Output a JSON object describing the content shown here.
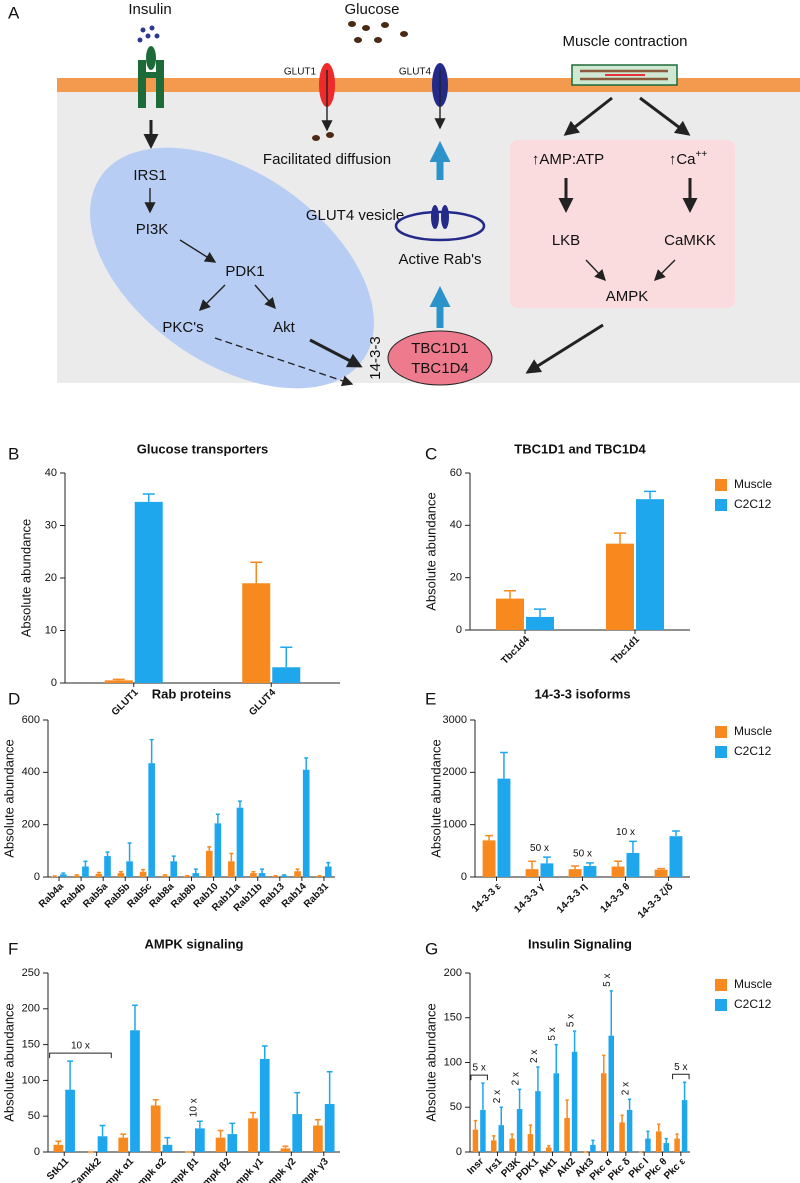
{
  "diagram": {
    "panel": "A",
    "insulin": "Insulin",
    "glucose": "Glucose",
    "muscle_contraction": "Muscle contraction",
    "glut1": "GLUT1",
    "glut4": "GLUT4",
    "facilitated_diffusion": "Facilitated diffusion",
    "glut4_vesicle": "GLUT4 vesicle",
    "active_rabs": "Active Rab's",
    "irs1": "IRS1",
    "pi3k": "PI3K",
    "pdk1": "PDK1",
    "pkcs": "PKC's",
    "akt": "Akt",
    "protein_1433": "14-3-3",
    "tbc1d1": "TBC1D1",
    "tbc1d4": "TBC1D4",
    "amp_atp": "↑AMP:ATP",
    "ca": {
      "base": "↑Ca",
      "sup": "++"
    },
    "lkb": "LKB",
    "camkk": "CaMKK",
    "ampk": "AMPK"
  },
  "chart_data": [
    {
      "type": "bar",
      "panel": "B",
      "title": "Glucose transporters",
      "y_label": "Absolute abundance",
      "categories": [
        "GLUT1",
        "GLUT4"
      ],
      "series": [
        {
          "color": "#f7891f",
          "values": [
            0.5,
            19
          ],
          "errors": [
            0.2,
            4
          ]
        },
        {
          "color": "#1fa7ee",
          "values": [
            34.5,
            3
          ],
          "errors": [
            1.5,
            3.8
          ]
        }
      ],
      "ylim": [
        0,
        40
      ],
      "yticks": [
        0,
        10,
        20,
        30,
        40
      ],
      "legend": "none",
      "annotations": []
    },
    {
      "type": "bar",
      "panel": "C",
      "title": "TBC1D1 and TBC1D4",
      "y_label": "Absolute abundance",
      "categories": [
        "Tbc1d4",
        "Tbc1d1"
      ],
      "series": [
        {
          "name": "Muscle",
          "color": "#f7891f",
          "values": [
            12,
            33
          ],
          "errors": [
            3,
            4
          ]
        },
        {
          "name": "C2C12",
          "color": "#1fa7ee",
          "values": [
            5,
            50
          ],
          "errors": [
            3,
            3
          ]
        }
      ],
      "ylim": [
        0,
        60
      ],
      "yticks": [
        0,
        20,
        40,
        60
      ],
      "legend": "right",
      "annotations": []
    },
    {
      "type": "bar",
      "panel": "D",
      "title": "Rab proteins",
      "y_label": "Absolute abundance",
      "categories": [
        "Rab4a",
        "Rab4b",
        "Rab5a",
        "Rab5b",
        "Rab5c",
        "Rab8a",
        "Rab8b",
        "Rab10",
        "Rab11a",
        "Rab11b",
        "Rab13",
        "Rab14",
        "Rab31"
      ],
      "series": [
        {
          "color": "#f7891f",
          "values": [
            2,
            5,
            12,
            15,
            20,
            5,
            3,
            100,
            60,
            15,
            3,
            22,
            3
          ],
          "errors": [
            2,
            3,
            5,
            5,
            8,
            3,
            2,
            15,
            30,
            5,
            2,
            8,
            2
          ]
        },
        {
          "color": "#1fa7ee",
          "values": [
            10,
            40,
            80,
            60,
            435,
            60,
            15,
            205,
            265,
            15,
            5,
            410,
            40
          ],
          "errors": [
            5,
            20,
            15,
            70,
            90,
            20,
            15,
            35,
            25,
            15,
            3,
            45,
            15
          ]
        }
      ],
      "ylim": [
        0,
        600
      ],
      "yticks": [
        0,
        200,
        400,
        600
      ],
      "legend": "none",
      "annotations": []
    },
    {
      "type": "bar",
      "panel": "E",
      "title": "14-3-3 isoforms",
      "y_label": "Absolute abundance",
      "categories": [
        "14-3-3 ε",
        "14-3-3 γ",
        "14-3-3 η",
        "14-3-3 θ",
        "14-3-3 ζ/δ"
      ],
      "series": [
        {
          "name": "Muscle",
          "color": "#f7891f",
          "values": [
            700,
            150,
            150,
            200,
            140
          ],
          "errors": [
            90,
            150,
            60,
            100,
            20
          ]
        },
        {
          "name": "C2C12",
          "color": "#1fa7ee",
          "values": [
            1880,
            260,
            210,
            460,
            780
          ],
          "errors": [
            500,
            120,
            60,
            220,
            100
          ]
        }
      ],
      "ylim": [
        0,
        3000
      ],
      "yticks": [
        0,
        1000,
        2000,
        3000
      ],
      "legend": "right",
      "annotations": [
        {
          "text": "50 x",
          "categories": [
            1
          ],
          "bracket": false,
          "rotated": false
        },
        {
          "text": "50 x",
          "categories": [
            2
          ],
          "bracket": false,
          "rotated": false
        },
        {
          "text": "10 x",
          "categories": [
            3
          ],
          "bracket": false,
          "rotated": false
        }
      ]
    },
    {
      "type": "bar",
      "panel": "F",
      "title": "AMPK signaling",
      "y_label": "Absolute abundance",
      "categories": [
        "Stk11",
        "Camkk2",
        "Ampk α1",
        "Ampk α2",
        "Ampk β1",
        "Ampk β2",
        "Ampk γ1",
        "Ampk γ2",
        "Ampk γ3"
      ],
      "series": [
        {
          "color": "#f7891f",
          "values": [
            10,
            0,
            20,
            65,
            0,
            20,
            47,
            5,
            37
          ],
          "errors": [
            5,
            0,
            5,
            8,
            0,
            10,
            8,
            3,
            8
          ]
        },
        {
          "color": "#1fa7ee",
          "values": [
            87,
            22,
            170,
            10,
            33,
            25,
            130,
            53,
            67
          ],
          "errors": [
            40,
            15,
            35,
            10,
            10,
            15,
            18,
            30,
            45
          ]
        }
      ],
      "ylim": [
        0,
        250
      ],
      "yticks": [
        0,
        50,
        100,
        150,
        200,
        250
      ],
      "legend": "none",
      "annotations": [
        {
          "text": "10 x",
          "categories": [
            0,
            1
          ],
          "bracket": true,
          "rotated": false
        },
        {
          "text": "10 x",
          "categories": [
            4
          ],
          "bracket": false,
          "rotated": true
        }
      ]
    },
    {
      "type": "bar",
      "panel": "G",
      "title": "Insulin Signaling",
      "y_label": "Absolute abundance",
      "categories": [
        "Insr",
        "Irs1",
        "PI3K",
        "PDK1",
        "Akt1",
        "Akt2",
        "Akt3",
        "Pkc α",
        "Pkc δ",
        "Pkc I",
        "Pkc θ",
        "Pkc ε"
      ],
      "series": [
        {
          "name": "Muscle",
          "color": "#f7891f",
          "values": [
            25,
            13,
            15,
            20,
            5,
            38,
            0,
            88,
            33,
            0,
            23,
            15
          ],
          "errors": [
            10,
            5,
            5,
            10,
            2,
            20,
            0,
            20,
            8,
            0,
            8,
            5
          ]
        },
        {
          "name": "C2C12",
          "color": "#1fa7ee",
          "values": [
            47,
            30,
            48,
            68,
            88,
            112,
            8,
            130,
            47,
            15,
            10,
            58
          ],
          "errors": [
            30,
            20,
            22,
            27,
            32,
            23,
            5,
            50,
            12,
            8,
            5,
            20
          ]
        }
      ],
      "ylim": [
        0,
        200
      ],
      "yticks": [
        0,
        50,
        100,
        150,
        200
      ],
      "legend": "right",
      "annotations": [
        {
          "text": "5 x",
          "categories": [
            0
          ],
          "bracket": true,
          "rotated": false
        },
        {
          "text": "2 x",
          "categories": [
            1
          ],
          "bracket": false,
          "rotated": true
        },
        {
          "text": "2 x",
          "categories": [
            2
          ],
          "bracket": false,
          "rotated": true
        },
        {
          "text": "2 x",
          "categories": [
            3
          ],
          "bracket": false,
          "rotated": true
        },
        {
          "text": "5 x",
          "categories": [
            4
          ],
          "bracket": false,
          "rotated": true
        },
        {
          "text": "5 x",
          "categories": [
            5
          ],
          "bracket": false,
          "rotated": true
        },
        {
          "text": "5 x",
          "categories": [
            7
          ],
          "bracket": false,
          "rotated": true
        },
        {
          "text": "2 x",
          "categories": [
            8
          ],
          "bracket": false,
          "rotated": true
        },
        {
          "text": "5 x",
          "categories": [
            11
          ],
          "bracket": true,
          "rotated": false
        }
      ]
    }
  ]
}
